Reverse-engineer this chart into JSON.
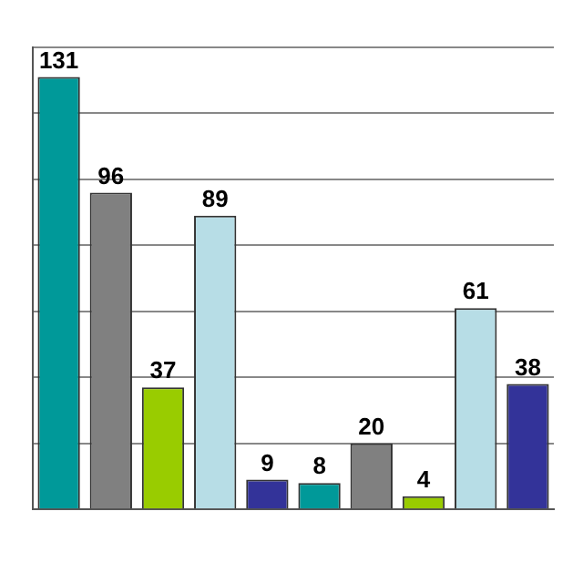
{
  "chart_data": {
    "type": "bar",
    "categories": [
      null,
      null,
      null,
      null,
      null,
      null,
      null,
      null,
      null,
      null
    ],
    "values": [
      131,
      96,
      37,
      89,
      9,
      8,
      20,
      4,
      61,
      38
    ],
    "colors": [
      "#009999",
      "#808080",
      "#99cc00",
      "#b7dde6",
      "#333399",
      "#009999",
      "#808080",
      "#99cc00",
      "#b7dde6",
      "#333399"
    ],
    "ylim": [
      0,
      140
    ],
    "yticks": [
      {
        "value": 0,
        "label": null
      },
      {
        "value": 20,
        "label": null
      },
      {
        "value": 40,
        "label": null
      },
      {
        "value": 60,
        "label": null
      },
      {
        "value": 80,
        "label": null
      },
      {
        "value": 100,
        "label": null
      },
      {
        "value": 120,
        "label": null
      },
      {
        "value": 140,
        "label": null
      }
    ],
    "grid": "y",
    "data_labels": true
  }
}
